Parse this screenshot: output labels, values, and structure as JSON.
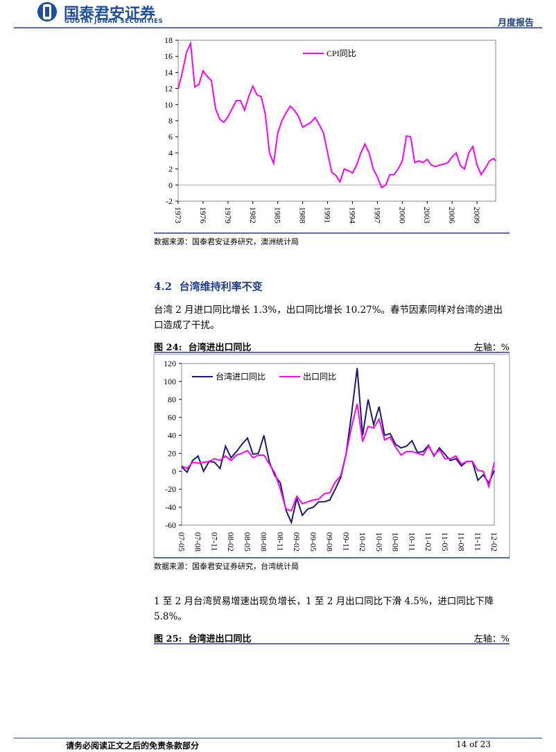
{
  "header": {
    "company": "国泰君安证券",
    "company_en": "GUOTAI JUNAN SECURITIES",
    "report_type": "月度报告"
  },
  "chart_data": [
    {
      "type": "line",
      "legend": "top-right",
      "zero_line": true,
      "xlim": [
        1973,
        2011.25
      ],
      "xticks": [
        1973,
        1976,
        1979,
        1982,
        1985,
        1988,
        1991,
        1994,
        1997,
        2000,
        2003,
        2006,
        2009
      ],
      "ylim": [
        -2,
        18
      ],
      "yticks": [
        -2,
        0,
        2,
        4,
        6,
        8,
        10,
        12,
        14,
        16,
        18
      ],
      "x": [
        1973,
        1973.5,
        1974,
        1974.5,
        1975,
        1975.5,
        1976,
        1976.5,
        1977,
        1977.5,
        1978,
        1978.5,
        1979,
        1979.5,
        1980,
        1980.5,
        1981,
        1981.5,
        1982,
        1982.5,
        1983,
        1983.5,
        1984,
        1984.5,
        1985,
        1985.5,
        1986,
        1986.5,
        1987,
        1987.5,
        1988,
        1988.5,
        1989,
        1989.5,
        1990,
        1990.5,
        1991,
        1991.5,
        1992,
        1992.5,
        1993,
        1993.5,
        1994,
        1994.5,
        1995,
        1995.5,
        1996,
        1996.5,
        1997,
        1997.5,
        1998,
        1998.5,
        1999,
        1999.5,
        2000,
        2000.5,
        2001,
        2001.5,
        2002,
        2002.5,
        2003,
        2003.5,
        2004,
        2004.5,
        2005,
        2005.5,
        2006,
        2006.5,
        2007,
        2007.5,
        2008,
        2008.5,
        2009,
        2009.5,
        2010,
        2010.5,
        2011,
        2011.25
      ],
      "series": [
        {
          "name": "CPI同比",
          "color": "#ff00ff",
          "values": [
            12,
            14,
            16.5,
            17.6,
            12.2,
            12.5,
            14.2,
            13.5,
            13,
            9.5,
            8.2,
            7.8,
            8.5,
            9.5,
            10.5,
            10.5,
            9.3,
            11,
            12.3,
            11.2,
            11,
            8.8,
            4,
            2.7,
            6.5,
            8,
            9,
            9.8,
            9.3,
            8.5,
            7.2,
            7.5,
            7.8,
            8.4,
            7.5,
            6.5,
            4,
            1.6,
            1.2,
            0.4,
            2,
            1.8,
            1.5,
            2.5,
            4,
            5.1,
            4,
            2,
            1,
            -0.3,
            0,
            1.3,
            1.3,
            2,
            3,
            6.1,
            6,
            2.8,
            3,
            2.8,
            3.2,
            2.5,
            2.3,
            2.5,
            2.6,
            2.8,
            3.5,
            4,
            2.4,
            2,
            4,
            4.8,
            2.5,
            1.3,
            2.1,
            3,
            3.3,
            3
          ]
        }
      ],
      "source": "数据来源：国泰君安证券研究，澳洲统计局"
    },
    {
      "type": "line",
      "legend": "top-left",
      "ylim": [
        -60,
        120
      ],
      "yticks": [
        -60,
        -40,
        -20,
        0,
        20,
        40,
        60,
        80,
        100,
        120
      ],
      "categories": [
        "07-05",
        null,
        null,
        "07-08",
        null,
        null,
        "07-11",
        null,
        null,
        "08-02",
        null,
        null,
        "08-05",
        null,
        null,
        "08-08",
        null,
        null,
        "08-11",
        null,
        null,
        "09-02",
        null,
        null,
        "09-05",
        null,
        null,
        "09-08",
        null,
        null,
        "09-11",
        null,
        null,
        "10-02",
        null,
        null,
        "10-05",
        null,
        null,
        "10-08",
        null,
        null,
        "10-11",
        null,
        null,
        "11-02",
        null,
        null,
        "11-05",
        null,
        null,
        "11-08",
        null,
        null,
        "11-11",
        null,
        null,
        "12-02"
      ],
      "series": [
        {
          "name": "台湾进口同比",
          "color": "#1a1a6e",
          "values": [
            5,
            -1,
            12,
            17,
            0,
            11,
            10,
            3,
            28,
            15,
            22,
            30,
            37,
            19,
            20,
            40,
            10,
            -5,
            -13,
            -43,
            -57,
            -30,
            -49,
            -42,
            -40,
            -34,
            -34,
            -32,
            -20,
            -7,
            20,
            65,
            115,
            40,
            80,
            52,
            72,
            40,
            42,
            30,
            26,
            28,
            34,
            21,
            22,
            29,
            17,
            26,
            19,
            12,
            14,
            6,
            11,
            11,
            -10,
            -4,
            -13,
            1
          ]
        },
        {
          "name": "出口同比",
          "color": "#ff00ff",
          "values": [
            6,
            3,
            10,
            9,
            10,
            11,
            14,
            12,
            17,
            12,
            18,
            20,
            23,
            15,
            18,
            18,
            8,
            -2,
            -20,
            -42,
            -44,
            -28,
            -36,
            -34,
            -32,
            -31,
            -25,
            -24,
            -12,
            -5,
            20,
            50,
            75,
            33,
            50,
            48,
            58,
            35,
            38,
            27,
            18,
            22,
            22,
            20,
            18,
            28,
            18,
            24,
            14,
            14,
            17,
            8,
            11,
            11,
            1,
            0,
            -17,
            10
          ]
        }
      ],
      "source": "数据来源：国泰君安证券研究，台湾统计局"
    }
  ],
  "section": {
    "number": "4.2",
    "title": "台湾维持利率不变"
  },
  "paragraphs": [
    "台湾 2 月进口同比增长 1.3%，出口同比增长 10.27%。春节因素同样对台湾的进出口造成了干扰。",
    "1 至 2 月台湾贸易增速出现负增长，1 至 2 月出口同比下滑 4.5%，进口同比下降 5.8%。"
  ],
  "figures": [
    {
      "label": "图 24:",
      "title": "台湾进出口同比",
      "unit": "左轴：%"
    },
    {
      "label": "图 25:",
      "title": "台湾进出口同比",
      "unit": "左轴：%"
    }
  ],
  "footer": {
    "disclaimer": "请务必阅读正文之后的免责条款部分",
    "page": "14 of 23"
  }
}
